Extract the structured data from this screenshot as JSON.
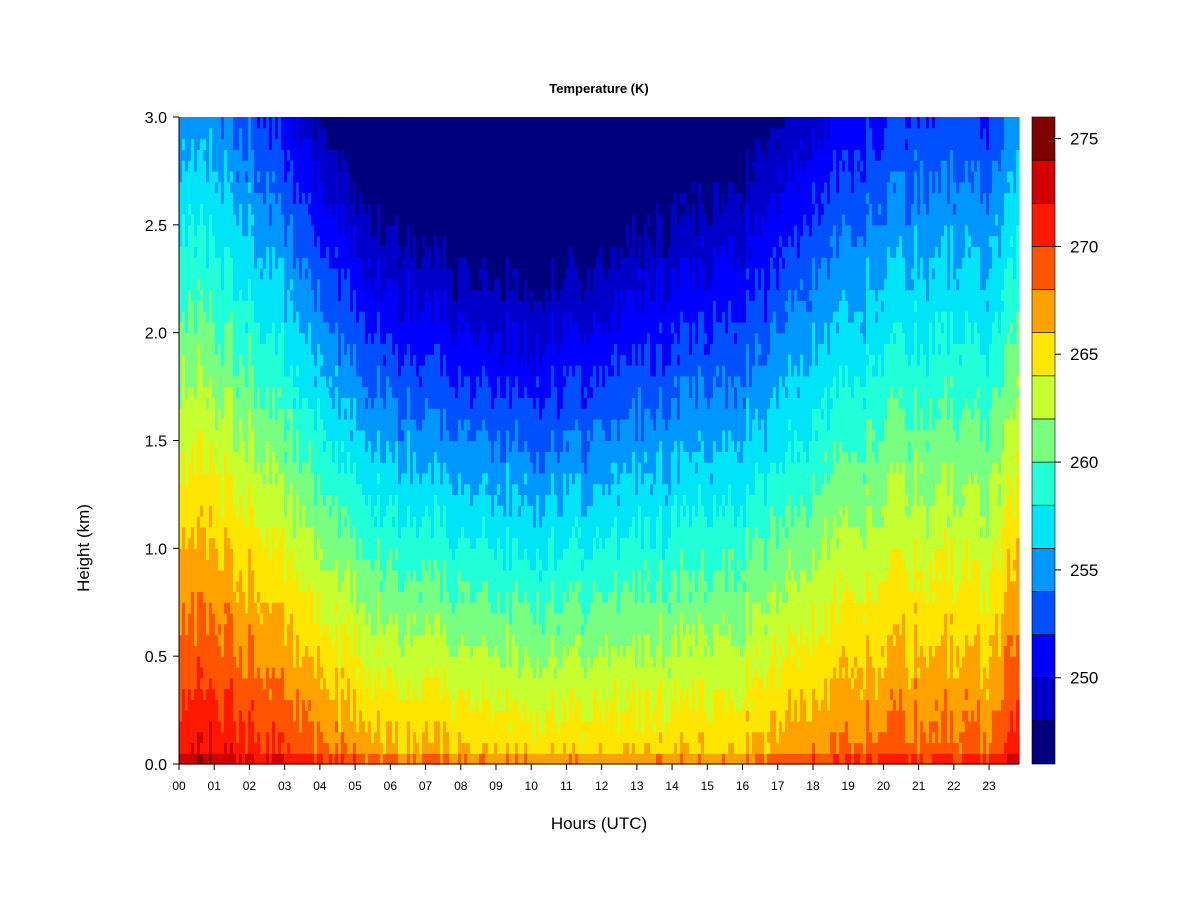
{
  "chart_data": {
    "type": "heatmap",
    "title": "Temperature (K)",
    "xlabel": "Hours (UTC)",
    "ylabel": "Height (km)",
    "x_ticks": [
      "00",
      "01",
      "02",
      "03",
      "04",
      "05",
      "06",
      "07",
      "08",
      "09",
      "10",
      "11",
      "12",
      "13",
      "14",
      "15",
      "16",
      "17",
      "18",
      "19",
      "20",
      "21",
      "22",
      "23"
    ],
    "xlim": [
      0,
      23.85
    ],
    "y_ticks": [
      "0.0",
      "0.5",
      "1.0",
      "1.5",
      "2.0",
      "2.5",
      "3.0"
    ],
    "ylim": [
      0,
      3.0
    ],
    "colorbar": {
      "ticks": [
        "250",
        "255",
        "260",
        "265",
        "270",
        "275"
      ],
      "range": [
        246,
        276
      ],
      "levels": [
        {
          "from": 246,
          "to": 248,
          "color": "#00007f"
        },
        {
          "from": 248,
          "to": 250,
          "color": "#0000c8"
        },
        {
          "from": 250,
          "to": 252,
          "color": "#0000ff"
        },
        {
          "from": 252,
          "to": 254,
          "color": "#0050ff"
        },
        {
          "from": 254,
          "to": 256,
          "color": "#0096ff"
        },
        {
          "from": 256,
          "to": 258,
          "color": "#00e4f8"
        },
        {
          "from": 258,
          "to": 260,
          "color": "#20ffd8"
        },
        {
          "from": 260,
          "to": 262,
          "color": "#78ff80"
        },
        {
          "from": 262,
          "to": 264,
          "color": "#c6ff30"
        },
        {
          "from": 264,
          "to": 266,
          "color": "#ffe600"
        },
        {
          "from": 266,
          "to": 268,
          "color": "#ffa200"
        },
        {
          "from": 268,
          "to": 270,
          "color": "#ff5500"
        },
        {
          "from": 270,
          "to": 272,
          "color": "#ff1800"
        },
        {
          "from": 272,
          "to": 274,
          "color": "#d00000"
        },
        {
          "from": 274,
          "to": 276,
          "color": "#800000"
        }
      ]
    },
    "surface_temperature_by_hour": [
      272,
      272,
      271,
      270,
      269,
      268,
      267,
      267,
      266.5,
      266.5,
      266,
      266,
      266,
      266,
      266,
      266,
      266.5,
      267,
      268,
      268.5,
      269,
      269,
      269,
      268.5
    ],
    "lapse_rate_K_per_km_by_hour": [
      5.5,
      5.8,
      6.0,
      6.5,
      7.0,
      7.5,
      7.8,
      8.0,
      8.2,
      8.3,
      8.3,
      8.0,
      7.8,
      7.5,
      7.2,
      7.0,
      6.8,
      6.5,
      6.2,
      6.0,
      5.8,
      5.6,
      5.5,
      5.5
    ]
  }
}
